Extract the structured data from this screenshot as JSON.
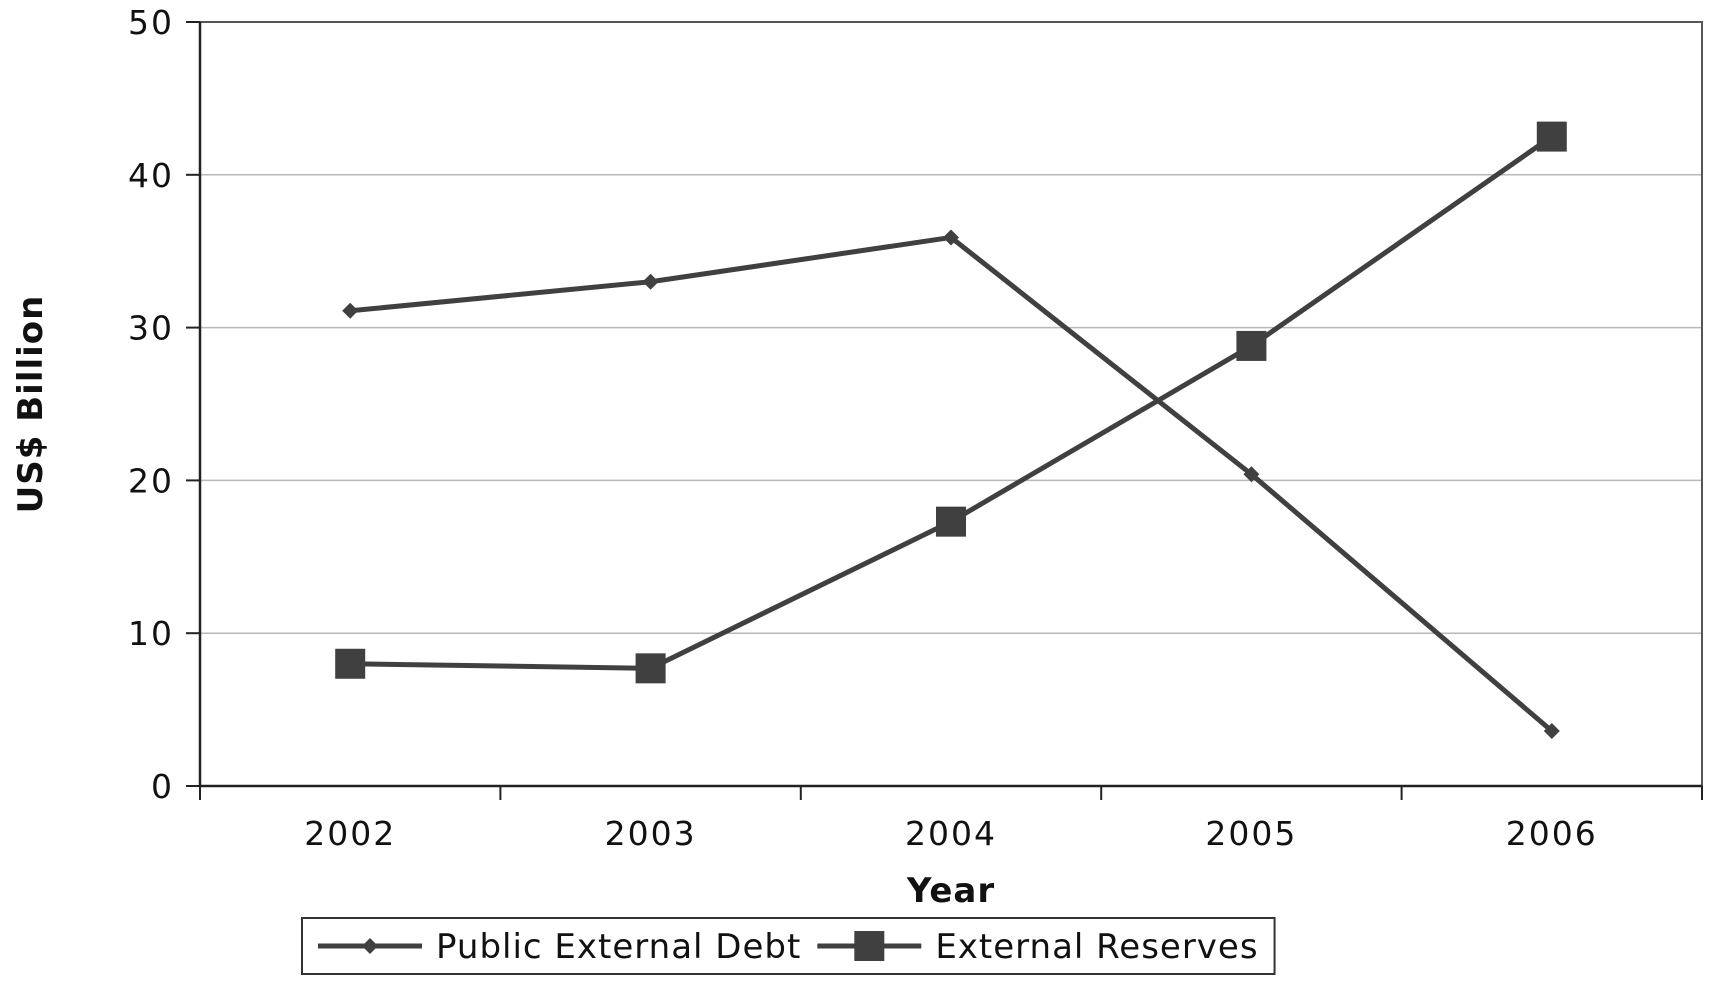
{
  "chart_data": {
    "type": "line",
    "title": "",
    "xlabel": "Year",
    "ylabel": "US$ Billion",
    "categories": [
      "2002",
      "2003",
      "2004",
      "2005",
      "2006"
    ],
    "ylim": [
      0,
      50
    ],
    "yticks": [
      0,
      10,
      20,
      30,
      40,
      50
    ],
    "grid": true,
    "legend_position": "bottom",
    "series": [
      {
        "name": "Public External Debt",
        "values": [
          31.1,
          33.0,
          35.9,
          20.4,
          3.6
        ],
        "marker": "diamond",
        "color": "#404040"
      },
      {
        "name": "External Reserves",
        "values": [
          8.0,
          7.7,
          17.3,
          28.8,
          42.5
        ],
        "marker": "square",
        "color": "#404040"
      }
    ]
  }
}
